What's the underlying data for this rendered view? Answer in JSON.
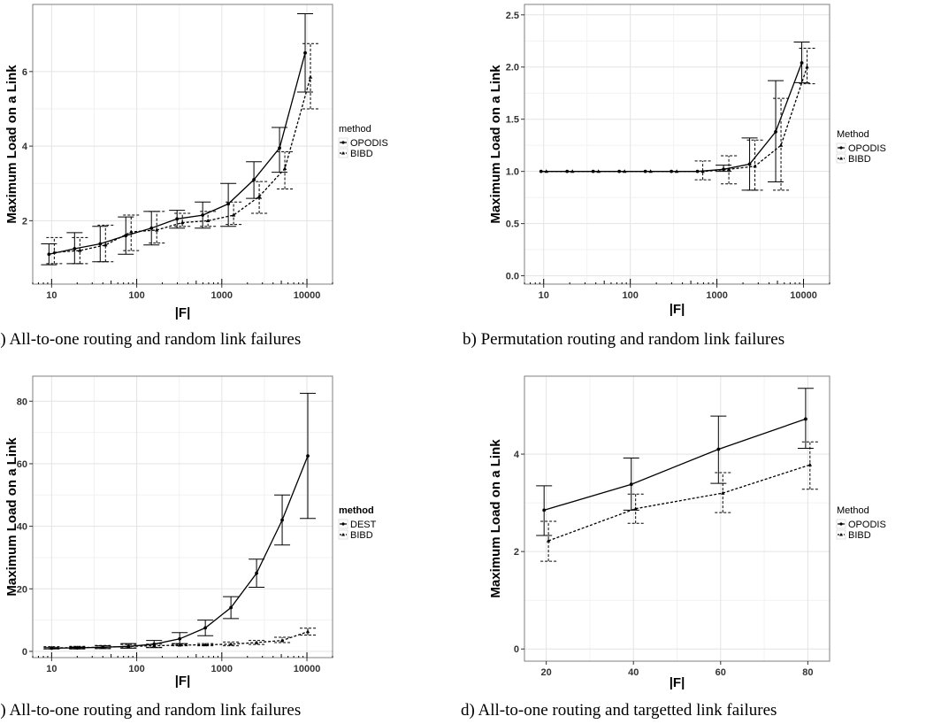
{
  "chart_data": [
    {
      "type": "line",
      "caption": "a) All-to-one routing and random link failures",
      "xlabel": "|F|",
      "ylabel": "Maximum Load on a Link",
      "x_scale": "log",
      "xlim": [
        6,
        20000
      ],
      "ylim": [
        0.3,
        7.8
      ],
      "x_ticks": [
        10,
        100,
        1000,
        10000
      ],
      "y_ticks": [
        2,
        4,
        6
      ],
      "legend_title": "method",
      "grid": true,
      "series": [
        {
          "name": "OPODIS",
          "style": "solid",
          "x": [
            10,
            20,
            40,
            80,
            160,
            320,
            640,
            1280,
            2560,
            5120,
            10240
          ],
          "y": [
            1.1,
            1.25,
            1.38,
            1.6,
            1.8,
            2.05,
            2.15,
            2.45,
            3.1,
            3.95,
            6.5
          ],
          "err_low": [
            0.82,
            0.85,
            0.9,
            1.1,
            1.35,
            1.8,
            1.8,
            1.85,
            2.6,
            3.3,
            5.45
          ],
          "err_high": [
            1.38,
            1.68,
            1.85,
            2.1,
            2.25,
            2.28,
            2.5,
            3.0,
            3.58,
            4.5,
            7.55
          ]
        },
        {
          "name": "BIBD",
          "style": "dotted",
          "x": [
            10,
            20,
            40,
            80,
            160,
            320,
            640,
            1280,
            2560,
            5120,
            10240
          ],
          "y": [
            1.15,
            1.2,
            1.35,
            1.7,
            1.75,
            1.95,
            2.0,
            2.15,
            2.65,
            3.4,
            5.85
          ],
          "err_low": [
            0.85,
            0.85,
            0.9,
            1.2,
            1.4,
            1.85,
            1.85,
            1.9,
            2.2,
            2.85,
            5.0
          ],
          "err_high": [
            1.55,
            1.55,
            1.88,
            2.15,
            2.25,
            2.2,
            2.25,
            2.5,
            3.05,
            3.85,
            6.75
          ]
        }
      ]
    },
    {
      "type": "line",
      "caption": "b) Permutation routing and random link failures",
      "xlabel": "|F|",
      "ylabel": "Maximum Load on a Link",
      "x_scale": "log",
      "xlim": [
        6,
        20000
      ],
      "ylim": [
        -0.08,
        2.6
      ],
      "x_ticks": [
        10,
        100,
        1000,
        10000
      ],
      "y_ticks": [
        0.0,
        0.5,
        1.0,
        1.5,
        2.0,
        2.5
      ],
      "y_tick_labels": [
        "0.0",
        "0.5",
        "1.0",
        "1.5",
        "2.0",
        "2.5"
      ],
      "legend_title": "Method",
      "grid": true,
      "series": [
        {
          "name": "OPODIS",
          "style": "solid",
          "x": [
            10,
            20,
            40,
            80,
            160,
            320,
            640,
            1280,
            2560,
            5120,
            10240
          ],
          "y": [
            1.0,
            1.0,
            1.0,
            1.0,
            1.0,
            1.0,
            1.0,
            1.02,
            1.07,
            1.38,
            2.04
          ],
          "err_low": [
            1.0,
            1.0,
            1.0,
            1.0,
            1.0,
            1.0,
            1.0,
            1.0,
            0.82,
            0.9,
            1.85
          ],
          "err_high": [
            1.0,
            1.0,
            1.0,
            1.0,
            1.0,
            1.0,
            1.0,
            1.06,
            1.32,
            1.87,
            2.24
          ]
        },
        {
          "name": "BIBD",
          "style": "dotted",
          "x": [
            10,
            20,
            40,
            80,
            160,
            320,
            640,
            1280,
            2560,
            5120,
            10240
          ],
          "y": [
            1.0,
            1.0,
            1.0,
            1.0,
            1.0,
            1.0,
            1.0,
            1.02,
            1.05,
            1.25,
            2.0
          ],
          "err_low": [
            1.0,
            1.0,
            1.0,
            1.0,
            1.0,
            1.0,
            0.92,
            0.88,
            0.82,
            0.82,
            1.84
          ],
          "err_high": [
            1.0,
            1.0,
            1.0,
            1.0,
            1.0,
            1.0,
            1.1,
            1.15,
            1.3,
            1.7,
            2.18
          ]
        }
      ]
    },
    {
      "type": "line",
      "caption": "c) All-to-one routing and random link failures",
      "xlabel": "|F|",
      "ylabel": "Maximum Load on a Link",
      "x_scale": "log",
      "xlim": [
        6,
        20000
      ],
      "ylim": [
        -2,
        88
      ],
      "x_ticks": [
        10,
        100,
        1000,
        10000
      ],
      "y_ticks": [
        0,
        20,
        40,
        60,
        80
      ],
      "legend_title": "method",
      "grid": true,
      "series": [
        {
          "name": "DEST",
          "style": "solid",
          "x": [
            10,
            20,
            40,
            80,
            160,
            320,
            640,
            1280,
            2560,
            5120,
            10240
          ],
          "y": [
            1.0,
            1.1,
            1.3,
            1.6,
            2.3,
            4.0,
            7.5,
            14.0,
            25.0,
            42.0,
            62.5
          ],
          "err_low": [
            0.8,
            0.8,
            0.9,
            1.0,
            1.2,
            2.5,
            5.0,
            10.5,
            20.5,
            34.0,
            42.5
          ],
          "err_high": [
            1.2,
            1.4,
            1.8,
            2.5,
            3.5,
            6.0,
            10.0,
            17.5,
            29.5,
            50.0,
            82.5
          ]
        },
        {
          "name": "BIBD",
          "style": "dotted",
          "x": [
            10,
            20,
            40,
            80,
            160,
            320,
            640,
            1280,
            2560,
            5120,
            10240
          ],
          "y": [
            1.1,
            1.2,
            1.3,
            1.6,
            1.8,
            2.0,
            2.1,
            2.3,
            2.8,
            3.5,
            6.3
          ],
          "err_low": [
            0.8,
            0.8,
            0.9,
            1.1,
            1.3,
            1.8,
            1.8,
            1.8,
            2.2,
            2.8,
            5.2
          ],
          "err_high": [
            1.5,
            1.6,
            1.9,
            2.2,
            2.3,
            2.3,
            2.5,
            3.0,
            3.5,
            4.5,
            7.4
          ]
        }
      ]
    },
    {
      "type": "line",
      "caption": "d) All-to-one routing and targetted link failures",
      "xlabel": "|F|",
      "ylabel": "Maximum Load on a Link",
      "x_scale": "linear",
      "xlim": [
        15,
        85
      ],
      "ylim": [
        -0.25,
        5.6
      ],
      "x_ticks": [
        20,
        40,
        60,
        80
      ],
      "y_ticks": [
        0,
        2,
        4
      ],
      "legend_title": "Method",
      "grid": true,
      "series": [
        {
          "name": "OPODIS",
          "style": "solid",
          "x": [
            19.5,
            39.5,
            59.5,
            79.5
          ],
          "y": [
            2.85,
            3.38,
            4.1,
            4.72
          ],
          "err_low": [
            2.33,
            2.85,
            3.4,
            4.12
          ],
          "err_high": [
            3.35,
            3.92,
            4.78,
            5.35
          ]
        },
        {
          "name": "BIBD",
          "style": "dotted",
          "x": [
            20.5,
            40.5,
            60.5,
            80.5
          ],
          "y": [
            2.22,
            2.88,
            3.2,
            3.78
          ],
          "err_low": [
            1.8,
            2.58,
            2.8,
            3.28
          ],
          "err_high": [
            2.62,
            3.18,
            3.62,
            4.25
          ]
        }
      ]
    }
  ]
}
